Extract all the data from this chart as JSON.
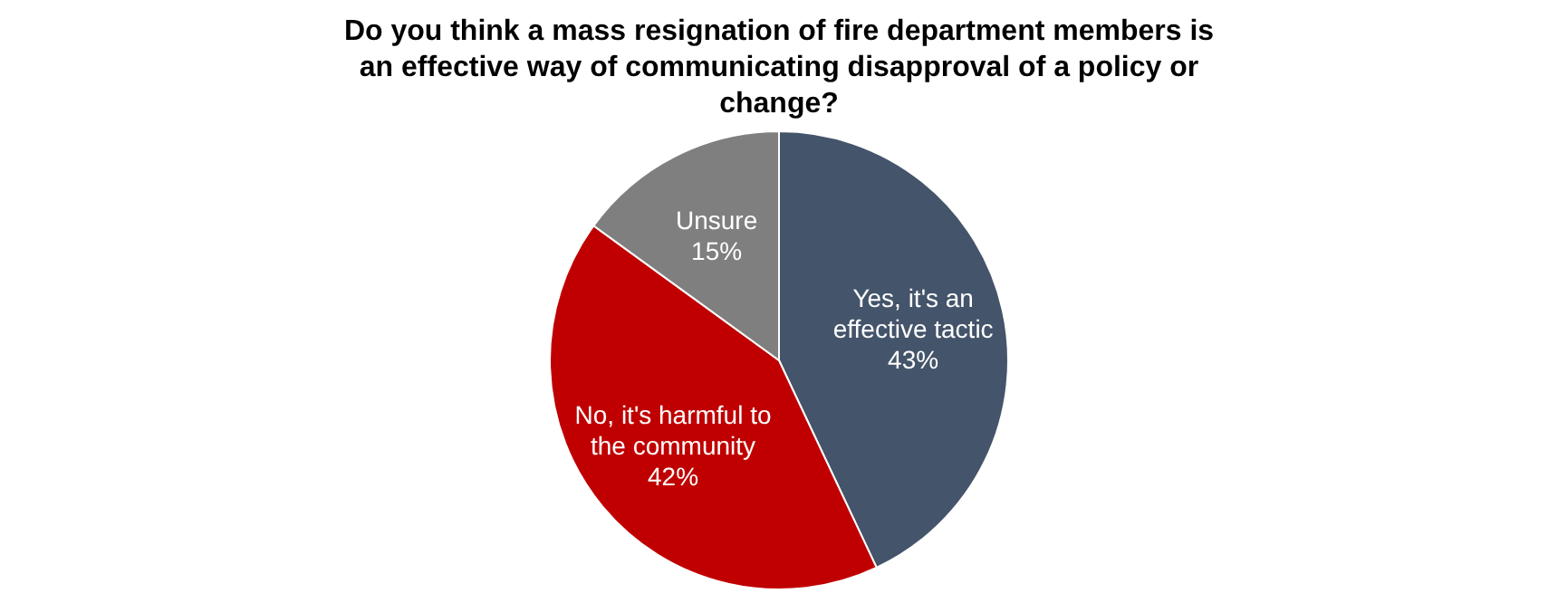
{
  "chart_data": {
    "type": "pie",
    "title": "Do you think a mass resignation of fire department members is an effective way of communicating disapproval of a policy or change?",
    "categories": [
      "Yes, it's an effective tactic",
      "No, it's harmful to the community",
      "Unsure"
    ],
    "values": [
      43,
      42,
      15
    ],
    "value_labels": [
      "43%",
      "42%",
      "15%"
    ],
    "colors": [
      "#44546a",
      "#c00000",
      "#7f7f7f"
    ]
  }
}
